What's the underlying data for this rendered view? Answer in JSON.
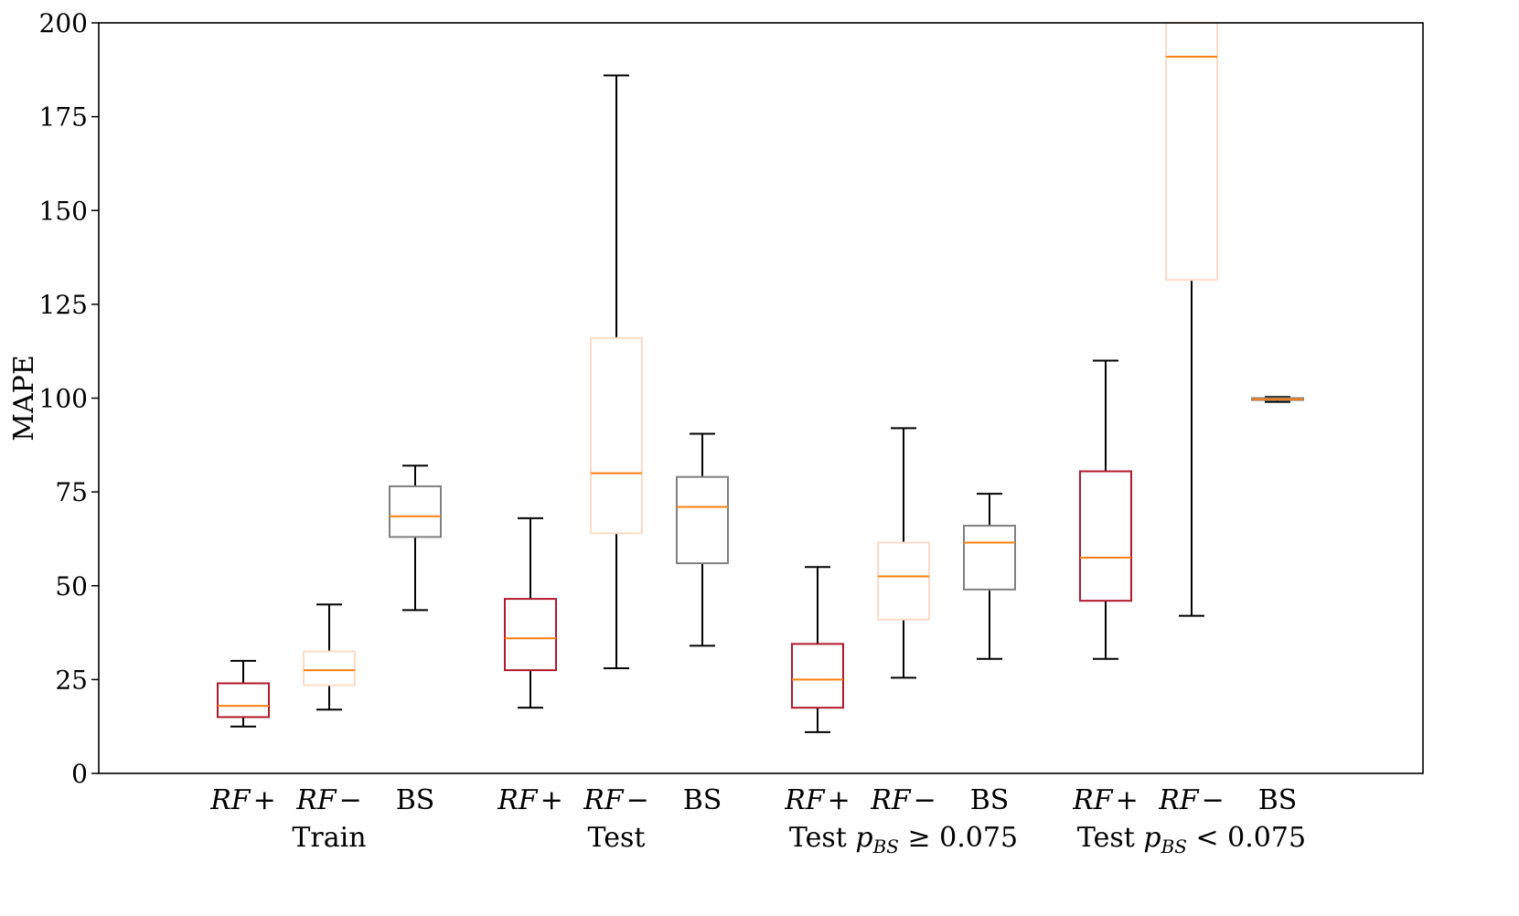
{
  "chart_data": {
    "type": "boxplot",
    "title": "",
    "ylabel": "MAPE",
    "xlabel": "",
    "ylim": [
      0,
      200
    ],
    "yticks": [
      0,
      25,
      50,
      75,
      100,
      125,
      150,
      175,
      200
    ],
    "colors": {
      "RF+": "#b2182b",
      "RF−": "#fddbc7",
      "BS": "#808080",
      "median": "#ff7f0e",
      "whisker": "#000000"
    },
    "groups": [
      {
        "label": "Train",
        "label_parts": [
          "Train"
        ],
        "boxes": [
          {
            "category": "RF+",
            "whislo": 12.5,
            "q1": 15.0,
            "median": 18.0,
            "q3": 24.0,
            "whishi": 30.0
          },
          {
            "category": "RF−",
            "whislo": 17.0,
            "q1": 23.5,
            "median": 27.5,
            "q3": 32.5,
            "whishi": 45.0
          },
          {
            "category": "BS",
            "whislo": 43.5,
            "q1": 63.0,
            "median": 68.5,
            "q3": 76.5,
            "whishi": 82.0
          }
        ]
      },
      {
        "label": "Test",
        "label_parts": [
          "Test"
        ],
        "boxes": [
          {
            "category": "RF+",
            "whislo": 17.5,
            "q1": 27.5,
            "median": 36.0,
            "q3": 46.5,
            "whishi": 68.0
          },
          {
            "category": "RF−",
            "whislo": 28.0,
            "q1": 64.0,
            "median": 80.0,
            "q3": 116.0,
            "whishi": 186.0
          },
          {
            "category": "BS",
            "whislo": 34.0,
            "q1": 56.0,
            "median": 71.0,
            "q3": 79.0,
            "whishi": 90.5
          }
        ]
      },
      {
        "label": "Test pBS ≥ 0.075",
        "label_parts": [
          "Test ",
          "p",
          "BS",
          " ≥ 0.075"
        ],
        "boxes": [
          {
            "category": "RF+",
            "whislo": 11.0,
            "q1": 17.5,
            "median": 25.0,
            "q3": 34.5,
            "whishi": 55.0
          },
          {
            "category": "RF−",
            "whislo": 25.5,
            "q1": 41.0,
            "median": 52.5,
            "q3": 61.5,
            "whishi": 92.0
          },
          {
            "category": "BS",
            "whislo": 30.5,
            "q1": 49.0,
            "median": 61.5,
            "q3": 66.0,
            "whishi": 74.5
          }
        ]
      },
      {
        "label": "Test pBS < 0.075",
        "label_parts": [
          "Test ",
          "p",
          "BS",
          " < 0.075"
        ],
        "boxes": [
          {
            "category": "RF+",
            "whislo": 30.5,
            "q1": 46.0,
            "median": 57.5,
            "q3": 80.5,
            "whishi": 110.0
          },
          {
            "category": "RF−",
            "whislo": 42.0,
            "q1": 131.5,
            "median": 191.0,
            "q3": 200.0,
            "whishi": 200.0
          },
          {
            "category": "BS",
            "whislo": 99.0,
            "q1": 99.5,
            "median": 99.7,
            "q3": 100.0,
            "whishi": 100.3
          }
        ]
      }
    ]
  }
}
